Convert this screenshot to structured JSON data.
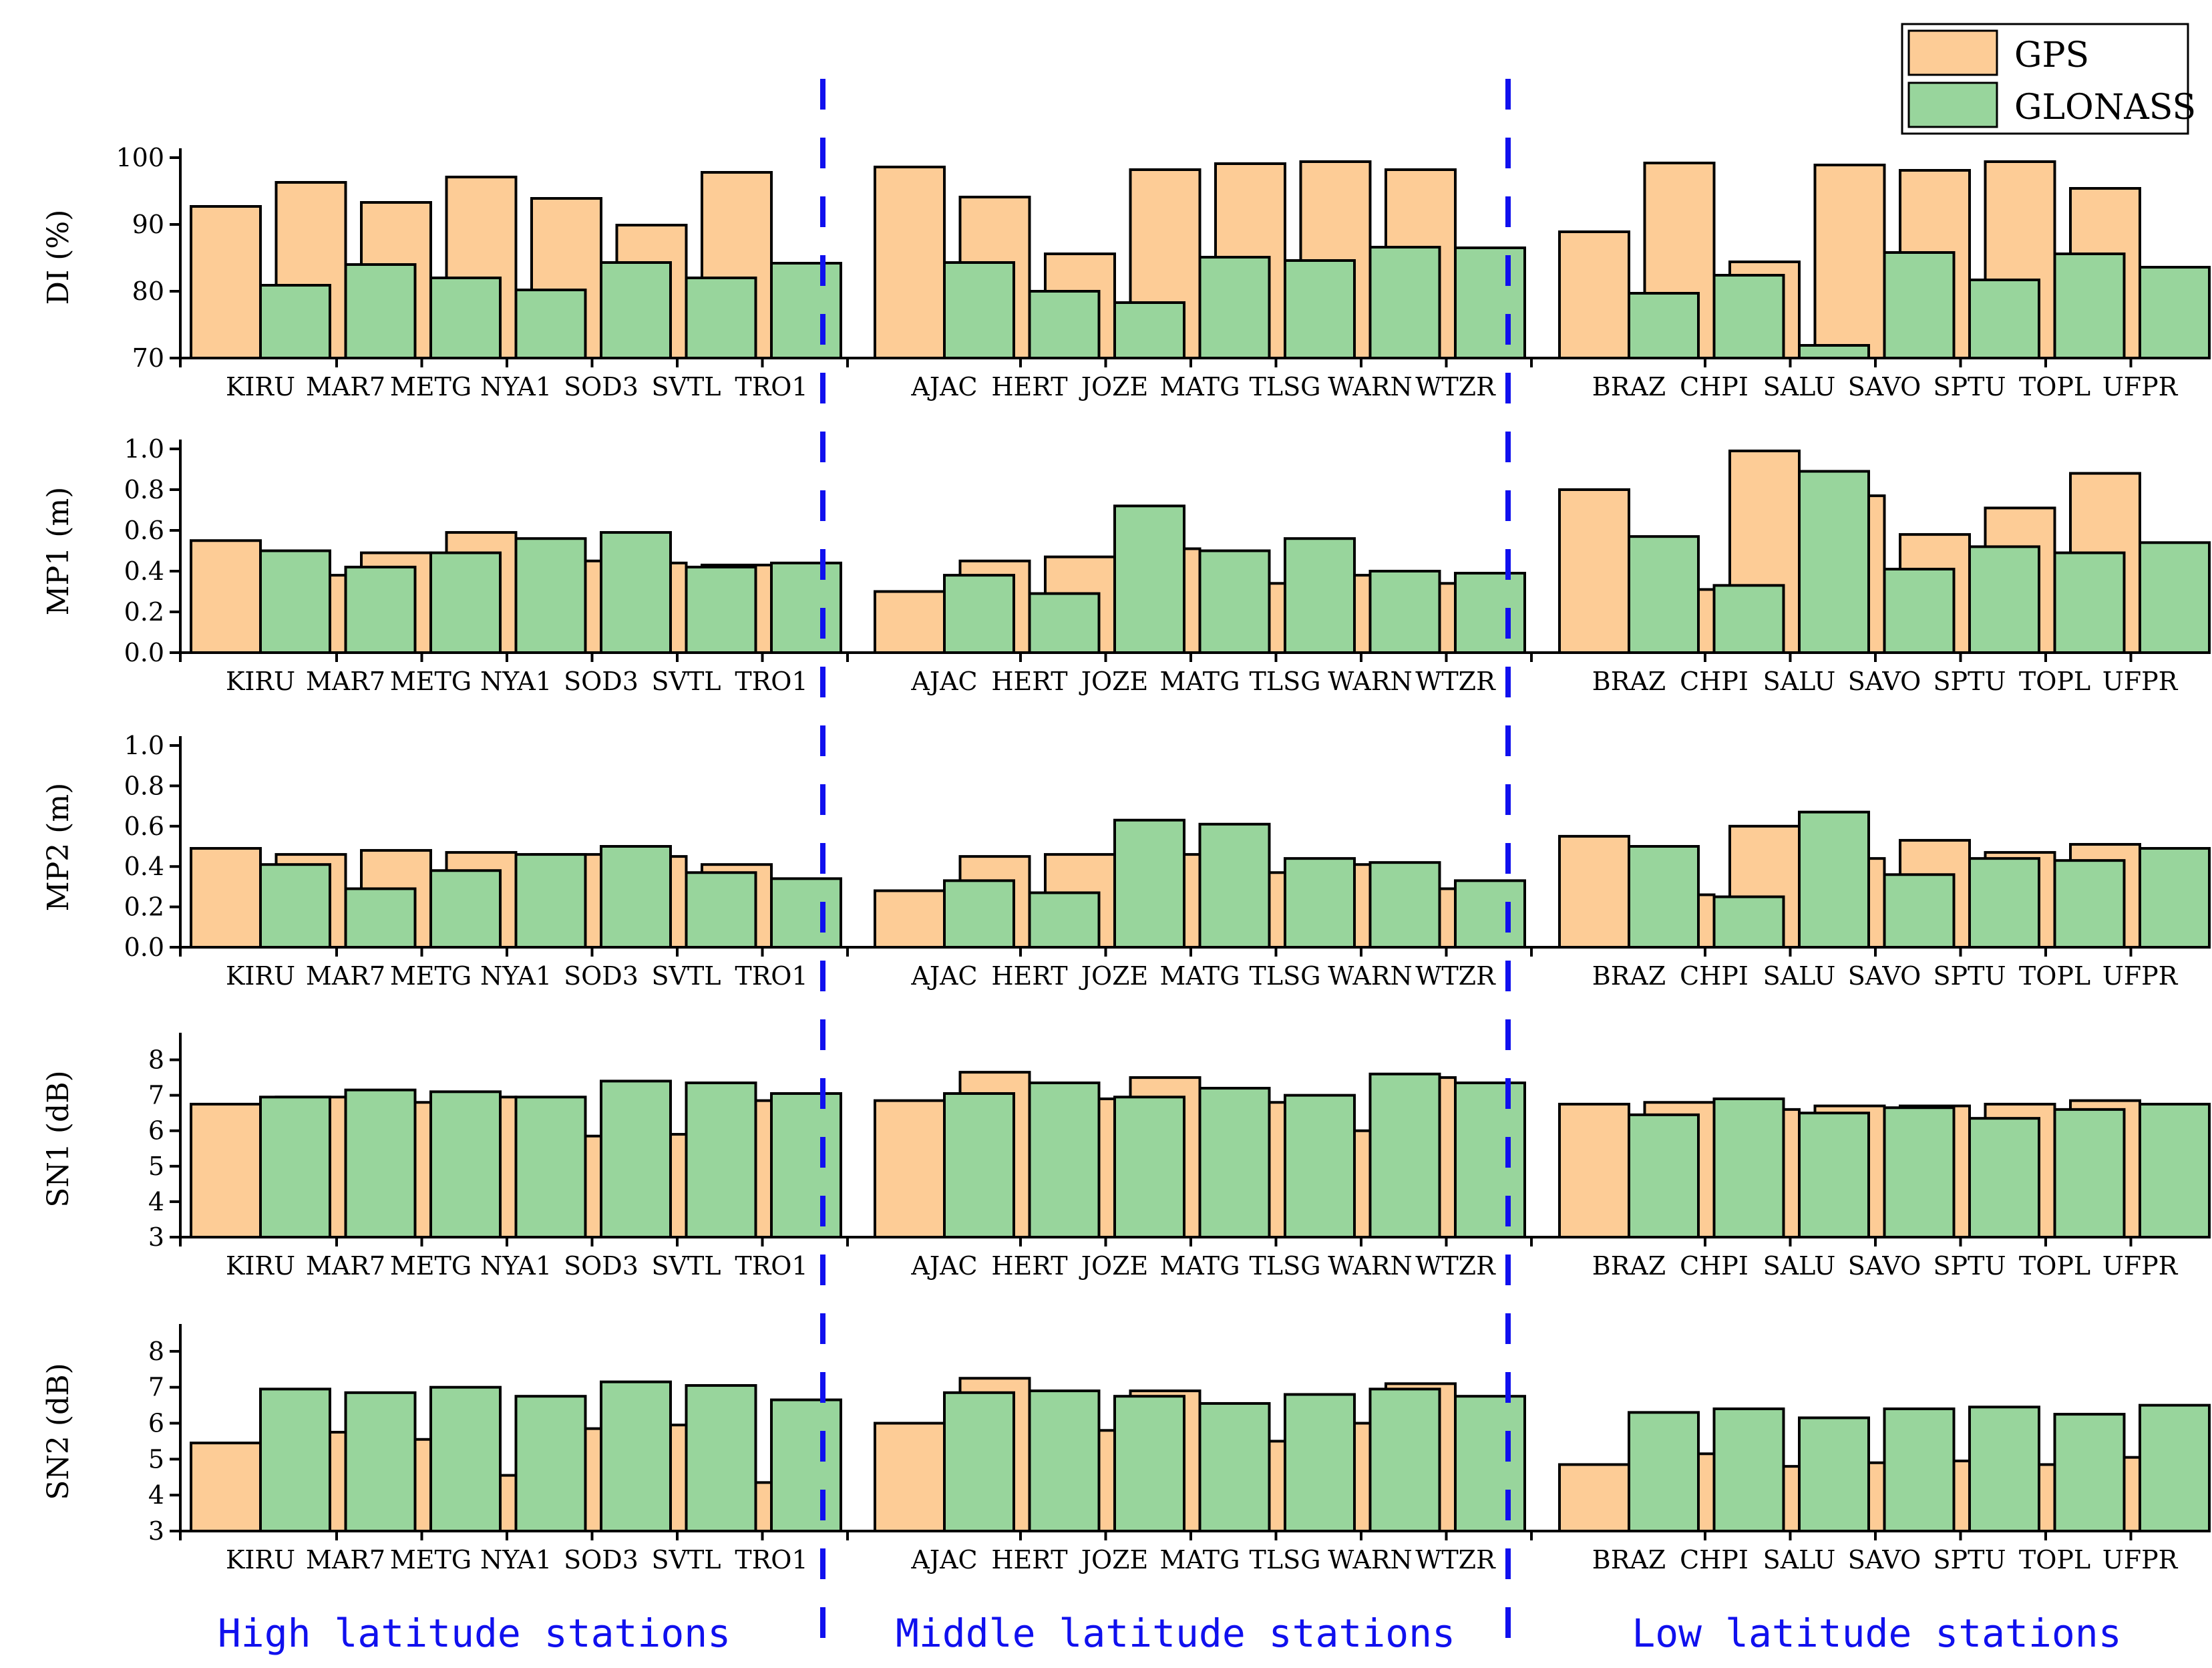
{
  "chart_data": {
    "type": "bar",
    "layout": "five stacked grouped-bar panels sharing station categories",
    "legend": {
      "position": "top-right",
      "entries": [
        {
          "name": "GPS",
          "color": "#fdcc96"
        },
        {
          "name": "GLONASS",
          "color": "#98d59c"
        }
      ]
    },
    "groups": [
      {
        "label": "High latitude stations",
        "stations": [
          "KIRU",
          "MAR7",
          "METG",
          "NYA1",
          "SOD3",
          "SVTL",
          "TRO1"
        ]
      },
      {
        "label": "Middle latitude stations",
        "stations": [
          "AJAC",
          "HERT",
          "JOZE",
          "MATG",
          "TLSG",
          "WARN",
          "WTZR"
        ]
      },
      {
        "label": "Low latitude stations",
        "stations": [
          "BRAZ",
          "CHPI",
          "SALU",
          "SAVO",
          "SPTU",
          "TOPL",
          "UFPR"
        ]
      }
    ],
    "panels": [
      {
        "ylabel": "DI (%)",
        "ylim": [
          70,
          100
        ],
        "yticks": [
          "70",
          "80",
          "90",
          "100"
        ],
        "tick_values": [
          70,
          80,
          90,
          100
        ],
        "series": [
          {
            "name": "GPS",
            "values": [
              92.7,
              96.3,
              93.3,
              97.1,
              93.9,
              89.9,
              97.8,
              98.6,
              94.1,
              85.6,
              98.2,
              99.1,
              99.4,
              98.2,
              88.9,
              99.2,
              84.4,
              98.9,
              98.1,
              99.4,
              95.4
            ]
          },
          {
            "name": "GLONASS",
            "values": [
              80.9,
              84.0,
              82.0,
              80.2,
              84.3,
              82.0,
              84.2,
              84.3,
              80.0,
              78.3,
              85.1,
              84.6,
              86.6,
              86.5,
              79.7,
              82.4,
              71.9,
              85.8,
              81.7,
              85.6,
              83.6
            ]
          }
        ]
      },
      {
        "ylabel": "MP1 (m)",
        "ylim": [
          0,
          1
        ],
        "yticks": [
          "0.0",
          "0.2",
          "0.4",
          "0.6",
          "0.8",
          "1.0"
        ],
        "tick_values": [
          0,
          0.2,
          0.4,
          0.6,
          0.8,
          1.0
        ],
        "series": [
          {
            "name": "GPS",
            "values": [
              0.55,
              0.38,
              0.49,
              0.59,
              0.45,
              0.44,
              0.43,
              0.3,
              0.45,
              0.47,
              0.51,
              0.34,
              0.38,
              0.34,
              0.8,
              0.31,
              0.99,
              0.77,
              0.58,
              0.71,
              0.88
            ]
          },
          {
            "name": "GLONASS",
            "values": [
              0.5,
              0.42,
              0.49,
              0.56,
              0.59,
              0.42,
              0.44,
              0.38,
              0.29,
              0.72,
              0.5,
              0.56,
              0.4,
              0.39,
              0.57,
              0.33,
              0.89,
              0.41,
              0.52,
              0.49,
              0.54
            ]
          }
        ]
      },
      {
        "ylabel": "MP2 (m)",
        "ylim": [
          0,
          1
        ],
        "yticks": [
          "0.0",
          "0.2",
          "0.4",
          "0.6",
          "0.8",
          "1.0"
        ],
        "tick_values": [
          0,
          0.2,
          0.4,
          0.6,
          0.8,
          1.0
        ],
        "series": [
          {
            "name": "GPS",
            "values": [
              0.49,
              0.46,
              0.48,
              0.47,
              0.46,
              0.45,
              0.41,
              0.28,
              0.45,
              0.46,
              0.46,
              0.37,
              0.41,
              0.29,
              0.55,
              0.26,
              0.6,
              0.44,
              0.53,
              0.47,
              0.51
            ]
          },
          {
            "name": "GLONASS",
            "values": [
              0.41,
              0.29,
              0.38,
              0.46,
              0.5,
              0.37,
              0.34,
              0.33,
              0.27,
              0.63,
              0.61,
              0.44,
              0.42,
              0.33,
              0.5,
              0.25,
              0.67,
              0.36,
              0.44,
              0.43,
              0.49
            ]
          }
        ]
      },
      {
        "ylabel": "SN1 (dB)",
        "ylim": [
          3,
          8.5
        ],
        "yticks": [
          "3",
          "4",
          "5",
          "6",
          "7",
          "8"
        ],
        "tick_values": [
          3,
          4,
          5,
          6,
          7,
          8
        ],
        "series": [
          {
            "name": "GPS",
            "values": [
              6.75,
              6.95,
              6.8,
              6.95,
              5.85,
              5.9,
              6.85,
              6.85,
              7.65,
              6.9,
              7.5,
              6.8,
              6.0,
              7.5,
              6.75,
              6.8,
              6.6,
              6.7,
              6.7,
              6.75,
              6.85
            ]
          },
          {
            "name": "GLONASS",
            "values": [
              6.95,
              7.15,
              7.1,
              6.95,
              7.4,
              7.35,
              7.05,
              7.05,
              7.35,
              6.95,
              7.2,
              7.0,
              7.6,
              7.35,
              6.45,
              6.9,
              6.5,
              6.65,
              6.35,
              6.6,
              6.75
            ]
          }
        ]
      },
      {
        "ylabel": "SN2 (dB)",
        "ylim": [
          3,
          8.5
        ],
        "yticks": [
          "3",
          "4",
          "5",
          "6",
          "7",
          "8"
        ],
        "tick_values": [
          3,
          4,
          5,
          6,
          7,
          8
        ],
        "series": [
          {
            "name": "GPS",
            "values": [
              5.45,
              5.75,
              5.55,
              4.55,
              5.85,
              5.95,
              4.35,
              6.0,
              7.25,
              5.8,
              6.9,
              5.5,
              6.0,
              7.1,
              4.85,
              5.15,
              4.8,
              4.9,
              4.95,
              4.85,
              5.05
            ]
          },
          {
            "name": "GLONASS",
            "values": [
              6.95,
              6.85,
              7.0,
              6.75,
              7.15,
              7.05,
              6.65,
              6.85,
              6.9,
              6.75,
              6.55,
              6.8,
              6.95,
              6.75,
              6.3,
              6.4,
              6.15,
              6.4,
              6.45,
              6.25,
              6.5
            ]
          }
        ]
      }
    ]
  }
}
